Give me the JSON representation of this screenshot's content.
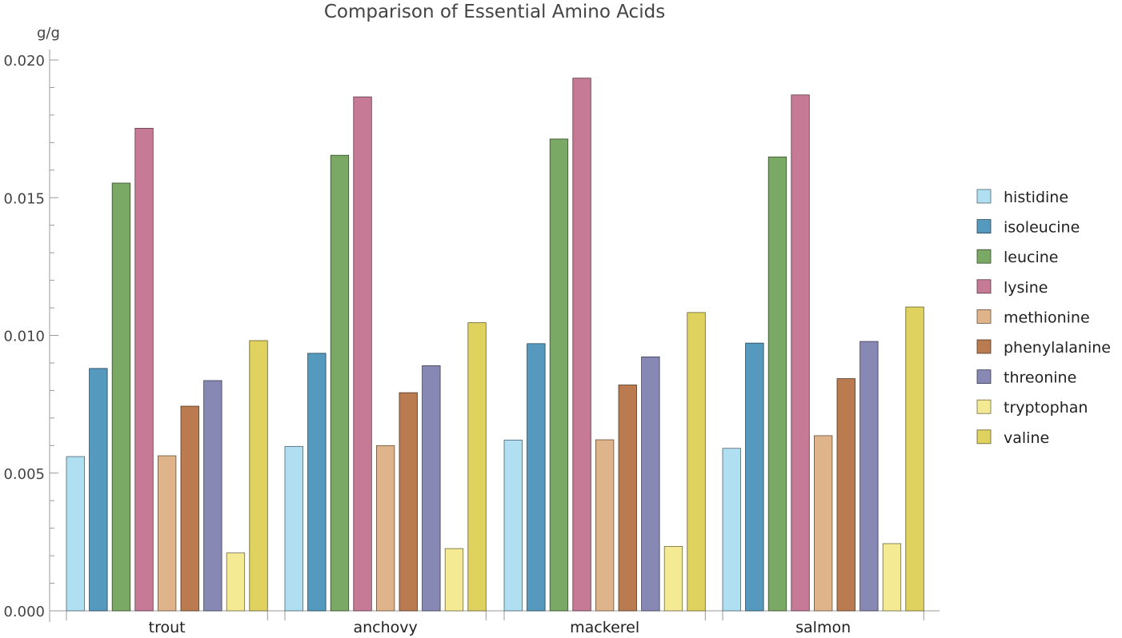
{
  "chart_data": {
    "type": "bar",
    "title": "Comparison of Essential Amino Acids",
    "ylabel": "g/g",
    "xlabel": "",
    "ylim": [
      0,
      0.02
    ],
    "yticks": [
      "0.000",
      "0.005",
      "0.010",
      "0.015",
      "0.020"
    ],
    "ytick_values": [
      0,
      0.005,
      0.01,
      0.015,
      0.02
    ],
    "grid": false,
    "legend_position": "right",
    "categories": [
      "trout",
      "anchovy",
      "mackerel",
      "salmon"
    ],
    "series": [
      {
        "name": "histidine",
        "color": "#b0dff2",
        "values": [
          0.0056,
          0.00597,
          0.0062,
          0.0059
        ]
      },
      {
        "name": "isoleucine",
        "color": "#5599bf",
        "values": [
          0.0088,
          0.00935,
          0.0097,
          0.00972
        ]
      },
      {
        "name": "leucine",
        "color": "#7aa865",
        "values": [
          0.01553,
          0.01654,
          0.01713,
          0.01648
        ]
      },
      {
        "name": "lysine",
        "color": "#c67a95",
        "values": [
          0.01752,
          0.01866,
          0.01934,
          0.01873
        ]
      },
      {
        "name": "methionine",
        "color": "#e0b48a",
        "values": [
          0.00563,
          0.006,
          0.00621,
          0.00636
        ]
      },
      {
        "name": "phenylalanine",
        "color": "#b97b4f",
        "values": [
          0.00743,
          0.00792,
          0.0082,
          0.00843
        ]
      },
      {
        "name": "threonine",
        "color": "#8888b5",
        "values": [
          0.00836,
          0.0089,
          0.00922,
          0.00978
        ]
      },
      {
        "name": "tryptophan",
        "color": "#f4ea94",
        "values": [
          0.0021,
          0.00226,
          0.00234,
          0.00244
        ]
      },
      {
        "name": "valine",
        "color": "#e0d25e",
        "values": [
          0.00981,
          0.01046,
          0.01083,
          0.01103
        ]
      }
    ]
  }
}
